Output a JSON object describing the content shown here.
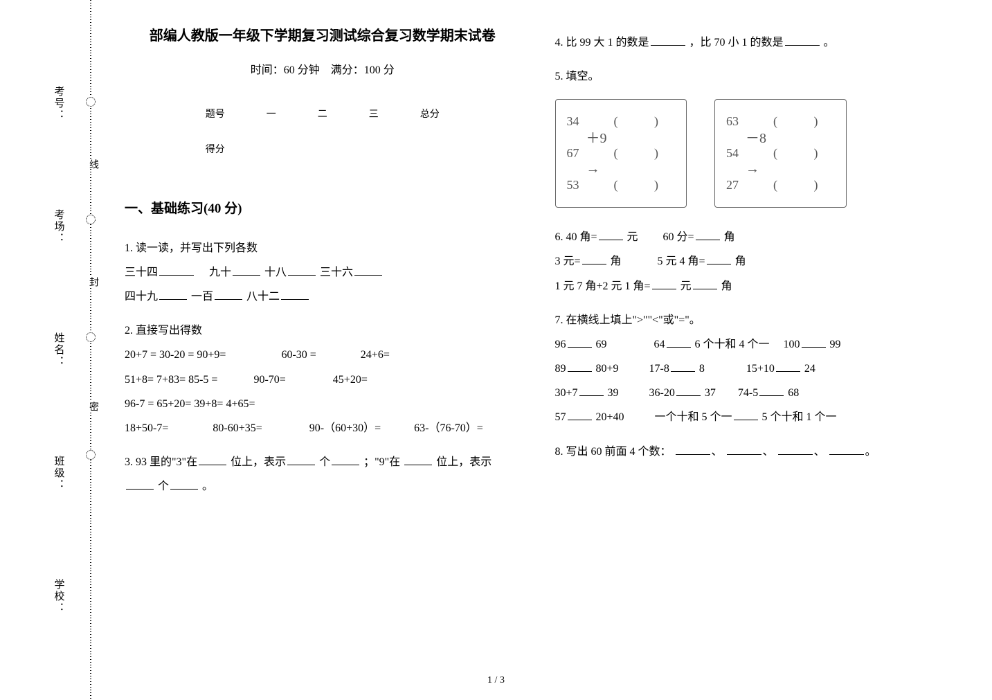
{
  "binding": {
    "labels": [
      "学校：",
      "班级：",
      "姓名：",
      "考场：",
      "考号："
    ],
    "seals": [
      "密",
      "封",
      "线"
    ]
  },
  "title": "部编人教版一年级下学期复习测试综合复习数学期末试卷",
  "subtitle": "时间：60 分钟　满分：100 分",
  "score_headers": [
    "题号",
    "一",
    "二",
    "三",
    "总分"
  ],
  "score_row_label": "得分",
  "section1_title": "一、基础练习(40 分)",
  "q1": {
    "label": "1. 读一读，并写出下列各数",
    "items": [
      "三十四",
      "　九十",
      "十八",
      "三十六",
      "四十九",
      "一百",
      "八十二"
    ]
  },
  "q2": {
    "label": "2. 直接写出得数",
    "lines": [
      "20+7 = 30-20 = 90+9=　　　　　60-30 =　　　　24+6=",
      "51+8= 7+83= 85-5 =　　　 90-70=　　　　 45+20=",
      "96-7 = 65+20= 39+8= 4+65=",
      "18+50-7=　　　　80-60+35=　　　　 90-（60+30）=　　　63-（76-70）="
    ]
  },
  "q3": {
    "prefix": "3. 93 里的\"3\"在",
    "mid1": "位上，表示",
    "mid2": "个",
    "mid3": "；\"9\"在",
    "mid4": "位上，表示",
    "mid5": "个",
    "end": "。"
  },
  "q4": {
    "prefix": "4. 比 99 大 1 的数是",
    "mid": "，比 70 小 1 的数是",
    "end": "。"
  },
  "q5": {
    "label": "5. 填空。",
    "left_nums": [
      "34",
      "67",
      "53"
    ],
    "right_nums": [
      "63",
      "54",
      "27"
    ],
    "left_op": "＋9",
    "right_op": "－8"
  },
  "q6": {
    "lines": [
      [
        "40 角=",
        "元",
        "60 分=",
        "角"
      ],
      [
        "3 元=",
        "角",
        "5 元 4 角=",
        "角"
      ],
      [
        "1 元 7 角+2 元 1 角=",
        "元",
        "角"
      ]
    ],
    "prefix": "6. "
  },
  "q7": {
    "label": "7. 在横线上填上\">\"\"<\"或\"=\"。",
    "rows": [
      [
        "96",
        "69",
        "64",
        "6 个十和 4 个一",
        "100",
        "99"
      ],
      [
        "89",
        "80+9",
        "17-8",
        "8",
        "15+10",
        "24"
      ],
      [
        "30+7",
        "39",
        "36-20",
        "37",
        "74-5",
        "68"
      ],
      [
        "57",
        "20+40",
        "一个十和 5 个一",
        "5 个十和 1 个一"
      ]
    ]
  },
  "q8": {
    "prefix": "8. 写出 60 前面 4 个数：",
    "sep": "、",
    "end": "。"
  },
  "page_num": "1 / 3"
}
